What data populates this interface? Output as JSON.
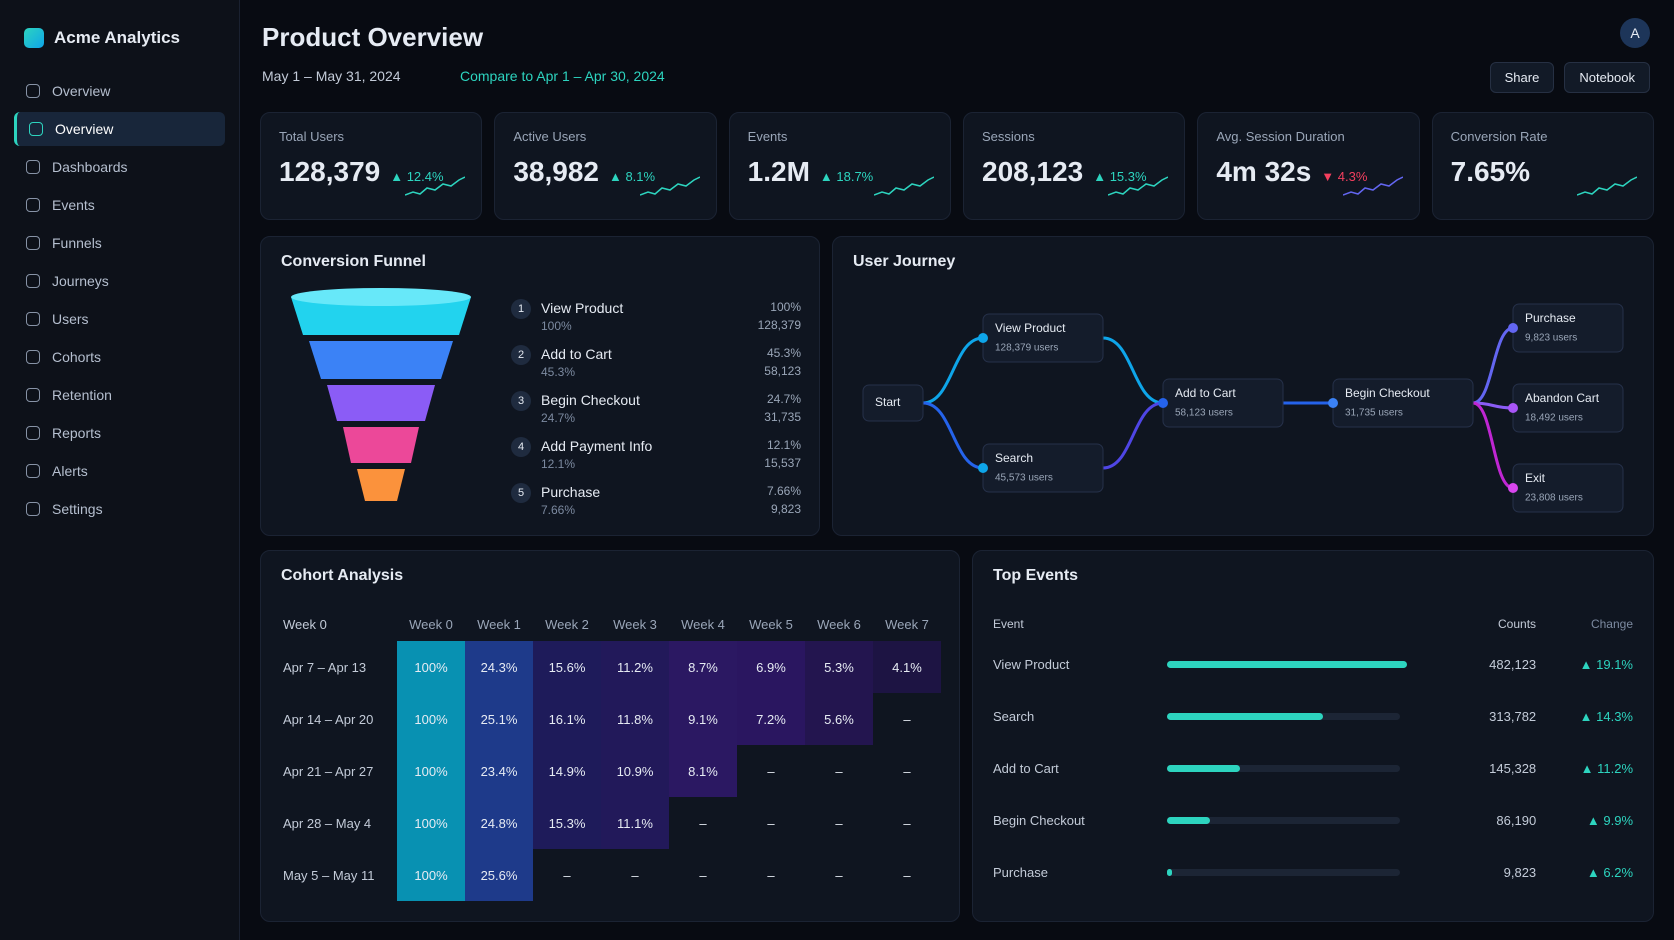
{
  "sidebar": {
    "brand": "Acme Analytics",
    "items": [
      "Overview",
      "Overview",
      "Dashboards",
      "Events",
      "Funnels",
      "Journeys",
      "Users",
      "Cohorts",
      "Retention",
      "Reports",
      "Alerts",
      "Settings"
    ],
    "active": 1
  },
  "header": {
    "title": "Product Overview",
    "date_range": "May 1 – May 31, 2024",
    "compare": "Compare to Apr 1 – Apr 30, 2024",
    "buttons": [
      "Share",
      "Notebook"
    ],
    "avatar": "A"
  },
  "kpis": [
    {
      "label": "Total Users",
      "value": "128,379",
      "change": "▲ 12.4%",
      "trend": "up"
    },
    {
      "label": "Active Users",
      "value": "38,982",
      "change": "▲ 8.1%",
      "trend": "up"
    },
    {
      "label": "Events",
      "value": "1.2M",
      "change": "▲ 18.7%",
      "trend": "up"
    },
    {
      "label": "Sessions",
      "value": "208,123",
      "change": "▲ 15.3%",
      "trend": "up"
    },
    {
      "label": "Avg. Session Duration",
      "value": "4m 32s",
      "change": "▼ 4.3%",
      "trend": "down"
    },
    {
      "label": "Conversion Rate",
      "value": "7.65%",
      "change": "",
      "trend": "up"
    }
  ],
  "funnel": {
    "title": "Conversion Funnel",
    "stages": [
      {
        "step": "1",
        "name": "View Product",
        "pct": "100%",
        "count": "128,379"
      },
      {
        "step": "2",
        "name": "Add to Cart",
        "pct": "45.3%",
        "count": "58,123"
      },
      {
        "step": "3",
        "name": "Begin Checkout",
        "pct": "24.7%",
        "count": "31,735"
      },
      {
        "step": "4",
        "name": "Add Payment Info",
        "pct": "12.1%",
        "count": "15,537"
      },
      {
        "step": "5",
        "name": "Purchase",
        "pct": "7.66%",
        "count": "9,823"
      }
    ]
  },
  "journey": {
    "title": "User Journey",
    "nodes": [
      {
        "label": "Start"
      },
      {
        "label": "View Product",
        "users": "128,379 users"
      },
      {
        "label": "Search",
        "users": "45,573 users"
      },
      {
        "label": "Add to Cart",
        "users": "58,123 users"
      },
      {
        "label": "Begin Checkout",
        "users": "31,735 users"
      },
      {
        "label": "Purchase",
        "users": "9,823 users"
      },
      {
        "label": "Abandon Cart",
        "users": "18,492 users"
      },
      {
        "label": "Exit",
        "users": "23,808 users"
      }
    ]
  },
  "cohort": {
    "title": "Cohort Analysis",
    "header": [
      "Week 0",
      "Week 0",
      "Week 1",
      "Week 2",
      "Week 3",
      "Week 4",
      "Week 5",
      "Week 6",
      "Week 7"
    ],
    "rows": [
      [
        "Apr 7 – Apr 13",
        "100%",
        "24.3%",
        "15.6%",
        "11.2%",
        "8.7%",
        "6.9%",
        "5.3%",
        "4.1%"
      ],
      [
        "Apr 14 – Apr 20",
        "100%",
        "25.1%",
        "16.1%",
        "11.8%",
        "9.1%",
        "7.2%",
        "5.6%",
        "–"
      ],
      [
        "Apr 21 – Apr 27",
        "100%",
        "23.4%",
        "14.9%",
        "10.9%",
        "8.1%",
        "–",
        "–",
        "–"
      ],
      [
        "Apr 28 – May 4",
        "100%",
        "24.8%",
        "15.3%",
        "11.1%",
        "–",
        "–",
        "–",
        "–"
      ],
      [
        "May 5 – May 11",
        "100%",
        "25.6%",
        "–",
        "–",
        "–",
        "–",
        "–",
        "–"
      ]
    ]
  },
  "top_events": {
    "title": "Top Events",
    "header": [
      "Event",
      "Counts",
      "Change"
    ],
    "events": [
      "View Product",
      "Search",
      "Add to Cart",
      "Begin Checkout",
      "Purchase"
    ],
    "counts": {
      "values": [
        482123,
        313782,
        145328,
        86190,
        9823
      ],
      "value_labels": [
        "482,123",
        "313,782",
        "145,328",
        "86,190",
        "9,823"
      ]
    },
    "changes": [
      "▲ 19.1%",
      "▲ 14.3%",
      "▲ 11.2%",
      "▲ 9.9%",
      "▲ 6.2%"
    ]
  }
}
